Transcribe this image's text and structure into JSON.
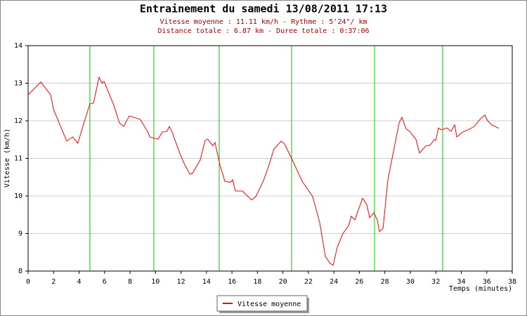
{
  "chart_data": {
    "type": "line",
    "title": "Entrainement du samedi 13/08/2011 17:13",
    "subtitle": [
      "Vitesse moyenne : 11.11 km/h - Rythme : 5'24\"/ km",
      "Distance totale : 6.87 km - Duree totale : 0:37:06"
    ],
    "x_label": "Temps (minutes)",
    "y_label": "Vitesse (km/h)",
    "xlim": [
      0,
      38
    ],
    "xticks": [
      0,
      2,
      4,
      6,
      8,
      10,
      12,
      14,
      16,
      18,
      20,
      22,
      24,
      26,
      28,
      30,
      32,
      34,
      36,
      38
    ],
    "ylim": [
      8,
      14
    ],
    "yticks": [
      8,
      9,
      10,
      11,
      12,
      13,
      14
    ],
    "grid": true,
    "markers": {
      "color": "#00cc00",
      "x": [
        4.85,
        9.87,
        15.0,
        20.68,
        27.19,
        32.54
      ]
    },
    "x": [
      0,
      1.0,
      1.77,
      2.0,
      3.03,
      3.5,
      3.9,
      4.3,
      4.85,
      5.13,
      5.57,
      5.8,
      5.96,
      6.73,
      7.17,
      7.5,
      7.94,
      8.8,
      9.4,
      9.55,
      10.2,
      10.53,
      10.9,
      11.09,
      11.3,
      11.9,
      12.25,
      12.7,
      12.9,
      13.5,
      13.9,
      14.1,
      14.5,
      14.67,
      15.06,
      15.44,
      15.88,
      16.05,
      16.27,
      16.82,
      17.54,
      17.87,
      18.48,
      18.86,
      19.3,
      19.86,
      20.13,
      20.68,
      21.51,
      22.34,
      22.9,
      23.33,
      23.72,
      23.94,
      24.27,
      24.71,
      25.15,
      25.37,
      25.65,
      26.25,
      26.59,
      26.81,
      27.14,
      27.41,
      27.58,
      27.86,
      28.24,
      28.85,
      29.12,
      29.34,
      29.67,
      30.0,
      30.45,
      30.72,
      31.22,
      31.55,
      31.88,
      32.0,
      32.21,
      32.43,
      32.87,
      33.2,
      33.48,
      33.65,
      34.1,
      34.53,
      35.03,
      35.47,
      35.85,
      36.07,
      36.4,
      36.95
    ],
    "series": [
      {
        "name": "Vitesse moyenne",
        "color": "#ff0000",
        "values": [
          12.69,
          13.03,
          12.69,
          12.3,
          11.46,
          11.57,
          11.4,
          11.85,
          12.45,
          12.47,
          13.16,
          13.0,
          13.05,
          12.41,
          11.94,
          11.85,
          12.13,
          12.04,
          11.7,
          11.57,
          11.51,
          11.7,
          11.72,
          11.85,
          11.7,
          11.14,
          10.86,
          10.58,
          10.6,
          10.95,
          11.48,
          11.51,
          11.33,
          11.42,
          10.82,
          10.39,
          10.36,
          10.43,
          10.13,
          10.13,
          9.89,
          9.98,
          10.41,
          10.77,
          11.25,
          11.46,
          11.38,
          11.0,
          10.39,
          9.98,
          9.27,
          8.39,
          8.2,
          8.15,
          8.64,
          9.0,
          9.2,
          9.46,
          9.36,
          9.94,
          9.76,
          9.42,
          9.55,
          9.36,
          9.05,
          9.14,
          10.43,
          11.48,
          11.94,
          12.09,
          11.79,
          11.7,
          11.5,
          11.14,
          11.33,
          11.35,
          11.5,
          11.48,
          11.81,
          11.76,
          11.81,
          11.72,
          11.89,
          11.57,
          11.7,
          11.76,
          11.85,
          12.04,
          12.15,
          12.0,
          11.89,
          11.8
        ]
      }
    ]
  }
}
